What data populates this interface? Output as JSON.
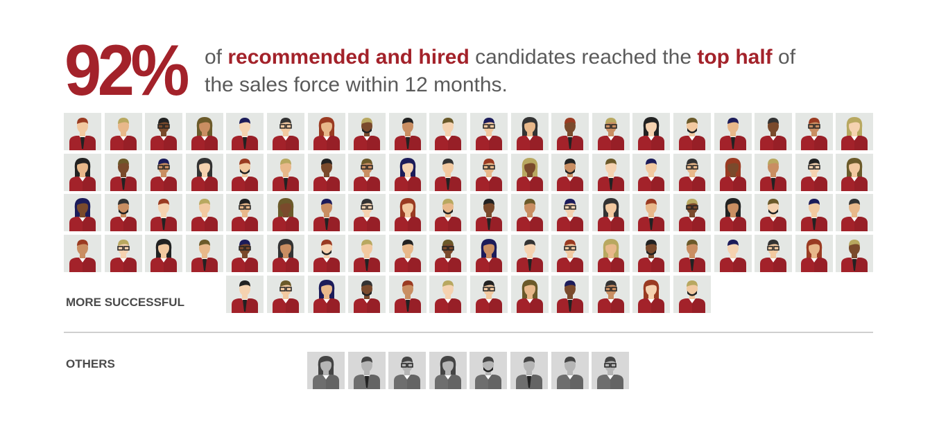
{
  "headline": {
    "percent": "92%",
    "line1": [
      {
        "text": "of ",
        "bold": false
      },
      {
        "text": "recommended and hired",
        "bold": true
      },
      {
        "text": " candidates reached the ",
        "bold": false
      },
      {
        "text": "top half",
        "bold": true
      },
      {
        "text": " of",
        "bold": false
      }
    ],
    "line2": "the sales force within 12 months."
  },
  "groups": {
    "successful": {
      "label": "MORE SUCCESSFUL",
      "count": 92,
      "color": "#a3222a"
    },
    "others": {
      "label": "OTHERS",
      "count": 8,
      "color": "#6e6e6e"
    }
  },
  "colors": {
    "accent": "#a3222a",
    "tile_bg": "#e4e7e4",
    "text": "#5a5a5a"
  }
}
